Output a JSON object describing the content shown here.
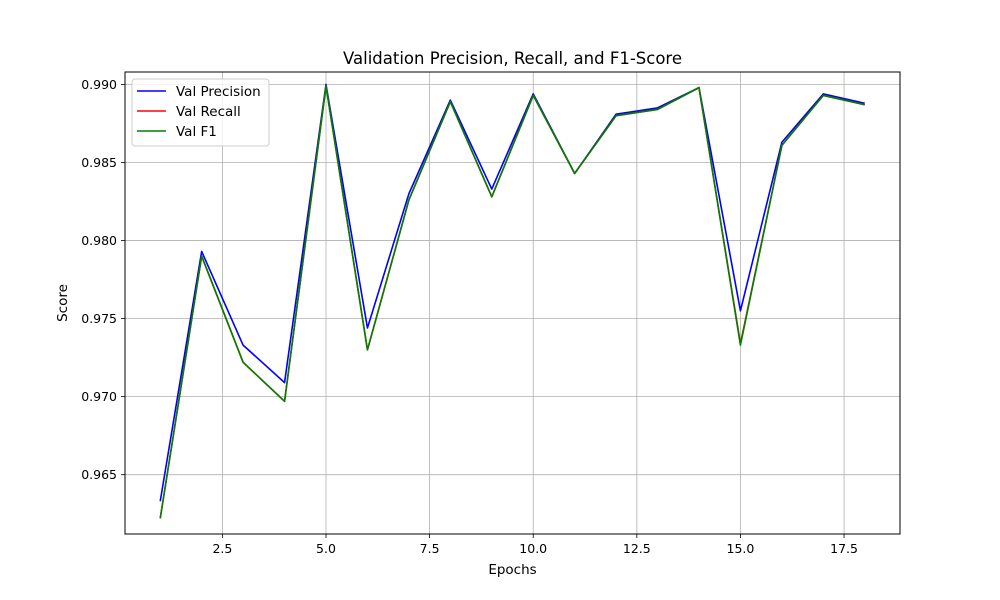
{
  "chart_data": {
    "type": "line",
    "title": "Validation Precision, Recall, and F1-Score",
    "xlabel": "Epochs",
    "ylabel": "Score",
    "xlim": [
      0.15,
      18.85
    ],
    "ylim": [
      0.9612,
      0.9908
    ],
    "xticks": [
      2.5,
      5.0,
      7.5,
      10.0,
      12.5,
      15.0,
      17.5
    ],
    "xtick_labels": [
      "2.5",
      "5.0",
      "7.5",
      "10.0",
      "12.5",
      "15.0",
      "17.5"
    ],
    "yticks": [
      0.965,
      0.97,
      0.975,
      0.98,
      0.985,
      0.99
    ],
    "ytick_labels": [
      "0.965",
      "0.970",
      "0.975",
      "0.980",
      "0.985",
      "0.990"
    ],
    "grid": true,
    "legend_position": "top-left",
    "x": [
      1,
      2,
      3,
      4,
      5,
      6,
      7,
      8,
      9,
      10,
      11,
      12,
      13,
      14,
      15,
      16,
      17,
      18
    ],
    "series": [
      {
        "name": "Val Precision",
        "color": "#0000ff",
        "values": [
          0.9633,
          0.9793,
          0.9733,
          0.9709,
          0.99,
          0.9744,
          0.983,
          0.989,
          0.9833,
          0.9894,
          0.9843,
          0.9881,
          0.9885,
          0.9898,
          0.9755,
          0.9863,
          0.9894,
          0.9888
        ]
      },
      {
        "name": "Val Recall",
        "color": "#ff0000",
        "values": [
          0.9622,
          0.979,
          0.9722,
          0.9697,
          0.9899,
          0.973,
          0.9826,
          0.9889,
          0.9828,
          0.9893,
          0.9843,
          0.988,
          0.9884,
          0.9898,
          0.9734,
          0.9861,
          0.9893,
          0.9887
        ]
      },
      {
        "name": "Val F1",
        "color": "#008000",
        "values": [
          0.9622,
          0.979,
          0.9722,
          0.9697,
          0.9899,
          0.973,
          0.9826,
          0.9889,
          0.9828,
          0.9893,
          0.9843,
          0.988,
          0.9884,
          0.9898,
          0.9733,
          0.9861,
          0.9893,
          0.9887
        ]
      }
    ]
  }
}
